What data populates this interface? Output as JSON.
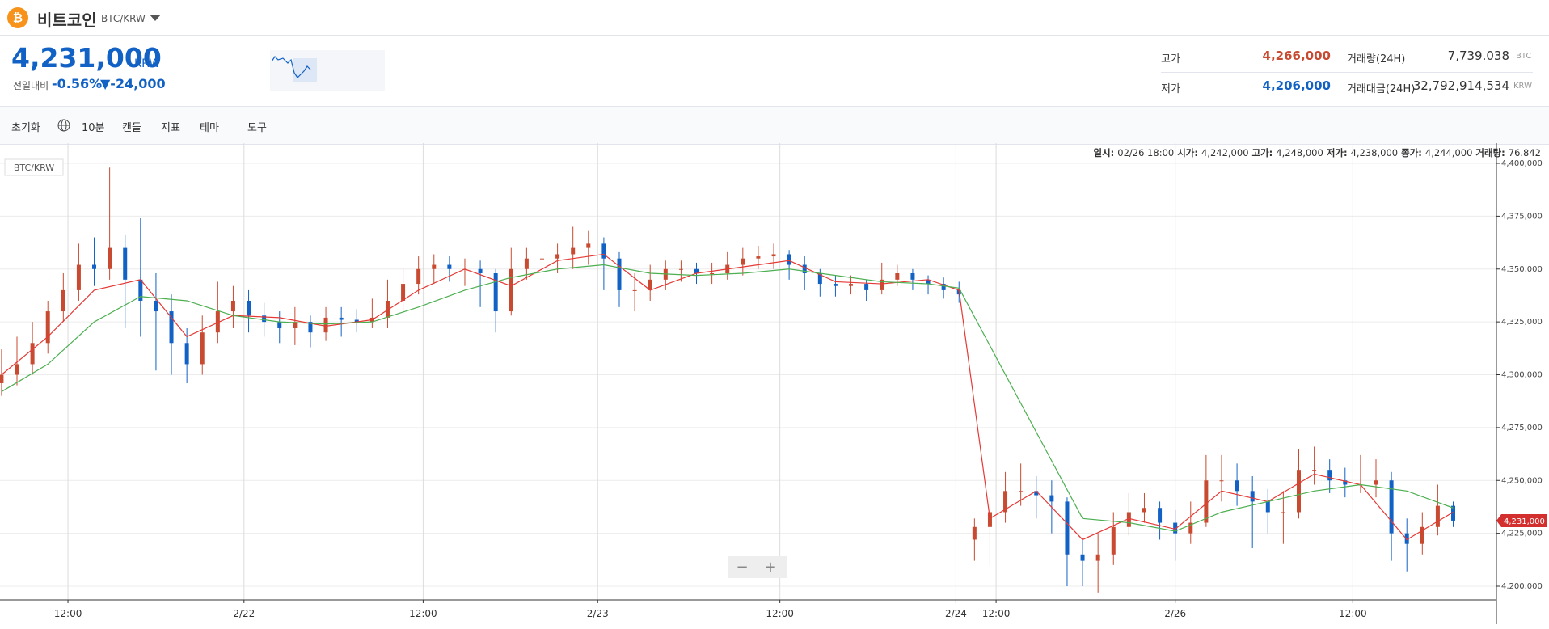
{
  "header": {
    "title": "비트코인",
    "market": "BTC/KRW"
  },
  "ticker": {
    "price": "4,231,000",
    "unit": "KRW",
    "change_label": "전일대비",
    "change_rate": "-0.56%",
    "change_price": "▼-24,000",
    "high_label": "고가",
    "high": "4,266,000",
    "low_label": "저가",
    "low": "4,206,000",
    "volume_label": "거래량(24H)",
    "volume": "7,739.038",
    "volume_unit": "BTC",
    "amount_label": "거래대금(24H)",
    "amount": "32,792,914,534",
    "amount_unit": "KRW"
  },
  "toolbar": [
    "초기화",
    "10분",
    "캔들",
    "지표",
    "테마",
    "도구"
  ],
  "info": [
    {
      "label": "일시:",
      "value": "02/26 18:00"
    },
    {
      "label": "시가:",
      "value": "4,242,000"
    },
    {
      "label": "고가:",
      "value": "4,248,000"
    },
    {
      "label": "저가:",
      "value": "4,238,000"
    },
    {
      "label": "종가:",
      "value": "4,244,000"
    },
    {
      "label": "거래량:",
      "value": "76.842"
    }
  ],
  "chart_data": {
    "type": "candlestick",
    "series_label": "BTC/KRW",
    "up_color": "#c84a31",
    "down_color": "#1261c4",
    "grid": true,
    "candles": [
      [
        4296000,
        4312000,
        4290000,
        4300000
      ],
      [
        4300000,
        4318000,
        4295000,
        4305000
      ],
      [
        4305000,
        4325000,
        4300000,
        4315000
      ],
      [
        4315000,
        4335000,
        4310000,
        4330000
      ],
      [
        4330000,
        4348000,
        4325000,
        4340000
      ],
      [
        4340000,
        4362000,
        4335000,
        4352000
      ],
      [
        4352000,
        4365000,
        4342000,
        4350000
      ],
      [
        4350000,
        4398000,
        4345000,
        4360000
      ],
      [
        4360000,
        4366000,
        4322000,
        4345000
      ],
      [
        4345000,
        4374000,
        4318000,
        4335000
      ],
      [
        4335000,
        4348000,
        4302000,
        4330000
      ],
      [
        4330000,
        4338000,
        4300000,
        4315000
      ],
      [
        4315000,
        4322000,
        4296000,
        4305000
      ],
      [
        4305000,
        4328000,
        4300000,
        4320000
      ],
      [
        4320000,
        4344000,
        4315000,
        4330000
      ],
      [
        4330000,
        4342000,
        4322000,
        4335000
      ],
      [
        4335000,
        4340000,
        4320000,
        4328000
      ],
      [
        4328000,
        4334000,
        4318000,
        4325000
      ],
      [
        4325000,
        4330000,
        4315000,
        4322000
      ],
      [
        4322000,
        4332000,
        4314000,
        4325000
      ],
      [
        4325000,
        4328000,
        4313000,
        4320000
      ],
      [
        4320000,
        4332000,
        4316000,
        4327000
      ],
      [
        4327000,
        4332000,
        4318000,
        4326000
      ],
      [
        4326000,
        4331000,
        4320000,
        4325000
      ],
      [
        4325000,
        4336000,
        4322000,
        4327000
      ],
      [
        4327000,
        4345000,
        4322000,
        4335000
      ],
      [
        4335000,
        4350000,
        4330000,
        4343000
      ],
      [
        4343000,
        4356000,
        4338000,
        4350000
      ],
      [
        4350000,
        4357000,
        4343000,
        4352000
      ],
      [
        4352000,
        4356000,
        4344000,
        4350000
      ],
      [
        4350000,
        4355000,
        4342000,
        4350000
      ],
      [
        4350000,
        4354000,
        4332000,
        4348000
      ],
      [
        4348000,
        4350000,
        4320000,
        4330000
      ],
      [
        4330000,
        4360000,
        4328000,
        4350000
      ],
      [
        4350000,
        4360000,
        4345000,
        4355000
      ],
      [
        4355000,
        4360000,
        4348000,
        4355000
      ],
      [
        4355000,
        4362000,
        4348000,
        4357000
      ],
      [
        4357000,
        4370000,
        4350000,
        4360000
      ],
      [
        4360000,
        4368000,
        4352000,
        4362000
      ],
      [
        4362000,
        4365000,
        4340000,
        4355000
      ],
      [
        4355000,
        4358000,
        4332000,
        4340000
      ],
      [
        4340000,
        4348000,
        4330000,
        4340000
      ],
      [
        4340000,
        4352000,
        4335000,
        4345000
      ],
      [
        4345000,
        4354000,
        4340000,
        4350000
      ],
      [
        4350000,
        4354000,
        4344000,
        4350000
      ],
      [
        4350000,
        4353000,
        4343000,
        4348000
      ],
      [
        4348000,
        4353000,
        4343000,
        4348000
      ],
      [
        4348000,
        4358000,
        4345000,
        4352000
      ],
      [
        4352000,
        4360000,
        4347000,
        4355000
      ],
      [
        4355000,
        4361000,
        4350000,
        4356000
      ],
      [
        4356000,
        4362000,
        4350000,
        4357000
      ],
      [
        4357000,
        4359000,
        4345000,
        4352000
      ],
      [
        4352000,
        4356000,
        4340000,
        4348000
      ],
      [
        4348000,
        4350000,
        4337000,
        4343000
      ],
      [
        4343000,
        4347000,
        4337000,
        4342000
      ],
      [
        4342000,
        4347000,
        4338000,
        4343000
      ],
      [
        4343000,
        4345000,
        4335000,
        4340000
      ],
      [
        4340000,
        4353000,
        4338000,
        4345000
      ],
      [
        4345000,
        4352000,
        4342000,
        4348000
      ],
      [
        4348000,
        4350000,
        4340000,
        4345000
      ],
      [
        4345000,
        4347000,
        4338000,
        4343000
      ],
      [
        4343000,
        4346000,
        4336000,
        4340000
      ],
      [
        4340000,
        4344000,
        4334000,
        4338000
      ],
      [
        4222000,
        4232000,
        4212000,
        4228000
      ],
      [
        4228000,
        4242000,
        4210000,
        4235000
      ],
      [
        4235000,
        4254000,
        4230000,
        4245000
      ],
      [
        4245000,
        4258000,
        4238000,
        4245000
      ],
      [
        4245000,
        4252000,
        4232000,
        4243000
      ],
      [
        4243000,
        4250000,
        4225000,
        4240000
      ],
      [
        4240000,
        4242000,
        4200000,
        4215000
      ],
      [
        4215000,
        4222000,
        4200000,
        4212000
      ],
      [
        4212000,
        4225000,
        4197000,
        4215000
      ],
      [
        4215000,
        4235000,
        4210000,
        4228000
      ],
      [
        4228000,
        4244000,
        4224000,
        4235000
      ],
      [
        4235000,
        4244000,
        4230000,
        4237000
      ],
      [
        4237000,
        4240000,
        4222000,
        4230000
      ],
      [
        4230000,
        4236000,
        4212000,
        4225000
      ],
      [
        4225000,
        4240000,
        4220000,
        4230000
      ],
      [
        4230000,
        4262000,
        4228000,
        4250000
      ],
      [
        4250000,
        4262000,
        4240000,
        4250000
      ],
      [
        4250000,
        4258000,
        4238000,
        4245000
      ],
      [
        4245000,
        4252000,
        4218000,
        4240000
      ],
      [
        4240000,
        4246000,
        4225000,
        4235000
      ],
      [
        4235000,
        4245000,
        4220000,
        4235000
      ],
      [
        4235000,
        4265000,
        4232000,
        4255000
      ],
      [
        4255000,
        4266000,
        4248000,
        4255000
      ],
      [
        4255000,
        4260000,
        4244000,
        4250000
      ],
      [
        4250000,
        4256000,
        4242000,
        4248000
      ],
      [
        4248000,
        4262000,
        4244000,
        4248000
      ],
      [
        4248000,
        4260000,
        4242000,
        4250000
      ],
      [
        4250000,
        4254000,
        4212000,
        4225000
      ],
      [
        4225000,
        4232000,
        4207000,
        4220000
      ],
      [
        4220000,
        4235000,
        4215000,
        4228000
      ],
      [
        4228000,
        4248000,
        4224000,
        4238000
      ],
      [
        4238000,
        4240000,
        4228000,
        4231000
      ]
    ],
    "ma": [
      {
        "color": "#e53935",
        "x": [
          0,
          3,
          6,
          9,
          12,
          15,
          18,
          21,
          24,
          27,
          30,
          33,
          36,
          39,
          42,
          45,
          48,
          51,
          54,
          57,
          60,
          62,
          64,
          67,
          70,
          73,
          76,
          79,
          82,
          85,
          88,
          91,
          94
        ],
        "values": [
          4300000,
          4318000,
          4340000,
          4345000,
          4318000,
          4328000,
          4327000,
          4323000,
          4326000,
          4340000,
          4350000,
          4342000,
          4354000,
          4357000,
          4340000,
          4348000,
          4351000,
          4354000,
          4344000,
          4343000,
          4345000,
          4340000,
          4232000,
          4245000,
          4222000,
          4232000,
          4227000,
          4245000,
          4240000,
          4253000,
          4248000,
          4222000,
          4235000
        ]
      },
      {
        "color": "#4caf50",
        "x": [
          0,
          3,
          6,
          9,
          12,
          15,
          18,
          21,
          24,
          27,
          30,
          33,
          36,
          39,
          42,
          45,
          48,
          51,
          54,
          57,
          60,
          62,
          70,
          73,
          76,
          79,
          82,
          85,
          88,
          91,
          94
        ],
        "values": [
          4292000,
          4305000,
          4325000,
          4337000,
          4335000,
          4328000,
          4325000,
          4324000,
          4325000,
          4332000,
          4340000,
          4346000,
          4350000,
          4352000,
          4348000,
          4347000,
          4348000,
          4350000,
          4347000,
          4344000,
          4343000,
          4341000,
          4232000,
          4230000,
          4226000,
          4235000,
          4240000,
          4245000,
          4248000,
          4245000,
          4237000
        ]
      }
    ],
    "xlim": [
      -0.1,
      96.8
    ],
    "xticks": [
      {
        "value": 4.3,
        "label": "12:00"
      },
      {
        "value": 15.7,
        "label": "2/22"
      },
      {
        "value": 27.3,
        "label": "12:00"
      },
      {
        "value": 38.6,
        "label": "2/23"
      },
      {
        "value": 50.4,
        "label": "12:00"
      },
      {
        "value": 61.8,
        "label": "2/24"
      },
      {
        "value": 64.4,
        "label": "12:00"
      },
      {
        "value": 76,
        "label": "2/26"
      },
      {
        "value": 87.5,
        "label": "12:00"
      }
    ],
    "ylim": [
      4193500,
      4402300
    ],
    "yticks": [
      {
        "value": 4200000,
        "label": "4,200,000"
      },
      {
        "value": 4225000,
        "label": "4,225,000"
      },
      {
        "value": 4250000,
        "label": "4,250,000"
      },
      {
        "value": 4275000,
        "label": "4,275,000"
      },
      {
        "value": 4300000,
        "label": "4,300,000"
      },
      {
        "value": 4325000,
        "label": "4,325,000"
      },
      {
        "value": 4350000,
        "label": "4,350,000"
      },
      {
        "value": 4375000,
        "label": "4,375,000"
      },
      {
        "value": 4400000,
        "label": "4,400,000"
      }
    ],
    "last_price": {
      "value": 4231000,
      "label": "4,231,000",
      "color": "#d32f2f"
    }
  }
}
